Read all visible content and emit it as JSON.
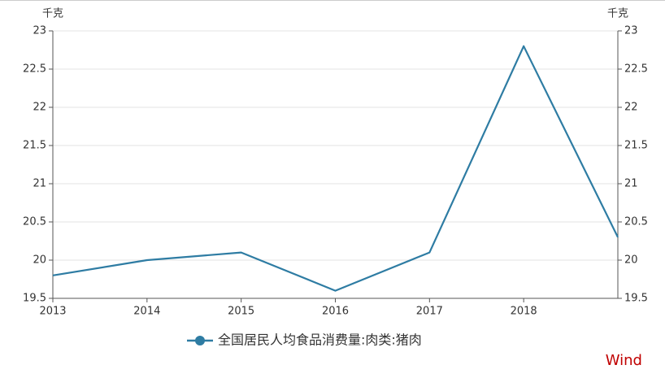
{
  "chart_data": {
    "type": "line",
    "y_unit": "千克",
    "y2_unit": "千克",
    "x": [
      2013,
      2014,
      2015,
      2016,
      2017,
      2018,
      2019
    ],
    "xlim": [
      2013,
      2019
    ],
    "xticks": [
      2013,
      2014,
      2015,
      2016,
      2017,
      2018
    ],
    "ylim": [
      19.5,
      23
    ],
    "yticks": [
      19.5,
      20,
      20.5,
      21,
      21.5,
      22,
      22.5,
      23
    ],
    "y2lim": [
      19.5,
      23
    ],
    "y2ticks": [
      19.5,
      20,
      20.5,
      21,
      21.5,
      22,
      22.5,
      23
    ],
    "grid": true,
    "series": [
      {
        "name": "全国居民人均食品消费量:肉类:猪肉",
        "color": "#2e7ca3",
        "values": [
          19.8,
          20.0,
          20.1,
          19.6,
          20.1,
          22.8,
          20.3
        ]
      }
    ],
    "legend": "bottom",
    "watermark": "Wind"
  }
}
